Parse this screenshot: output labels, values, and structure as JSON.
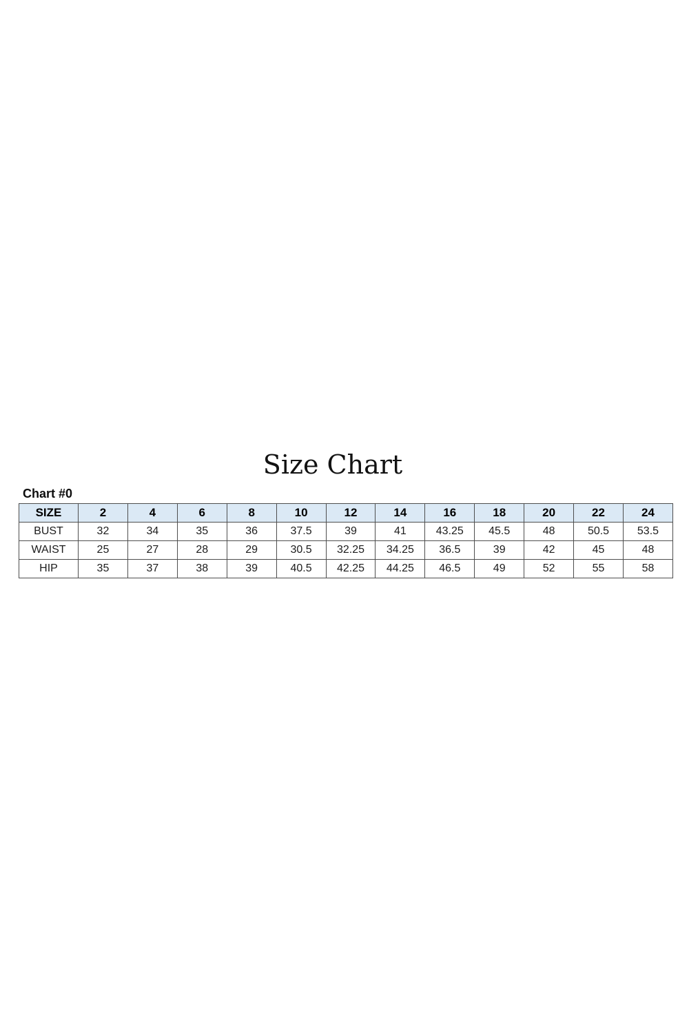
{
  "page": {
    "title": "Size Chart",
    "chart_label": "Chart #0"
  },
  "colors": {
    "header_bg": "#dbe9f5",
    "table_border": "#4d4d4d",
    "text": "#1c1c1c",
    "background": "#ffffff"
  },
  "chart_data": {
    "type": "table",
    "title": "Size Chart",
    "subtitle": "Chart #0",
    "columns": [
      "SIZE",
      "2",
      "4",
      "6",
      "8",
      "10",
      "12",
      "14",
      "16",
      "18",
      "20",
      "22",
      "24"
    ],
    "rows": [
      {
        "label": "BUST",
        "values": [
          "32",
          "34",
          "35",
          "36",
          "37.5",
          "39",
          "41",
          "43.25",
          "45.5",
          "48",
          "50.5",
          "53.5"
        ]
      },
      {
        "label": "WAIST",
        "values": [
          "25",
          "27",
          "28",
          "29",
          "30.5",
          "32.25",
          "34.25",
          "36.5",
          "39",
          "42",
          "45",
          "48"
        ]
      },
      {
        "label": "HIP",
        "values": [
          "35",
          "37",
          "38",
          "39",
          "40.5",
          "42.25",
          "44.25",
          "46.5",
          "49",
          "52",
          "55",
          "58"
        ]
      }
    ]
  }
}
